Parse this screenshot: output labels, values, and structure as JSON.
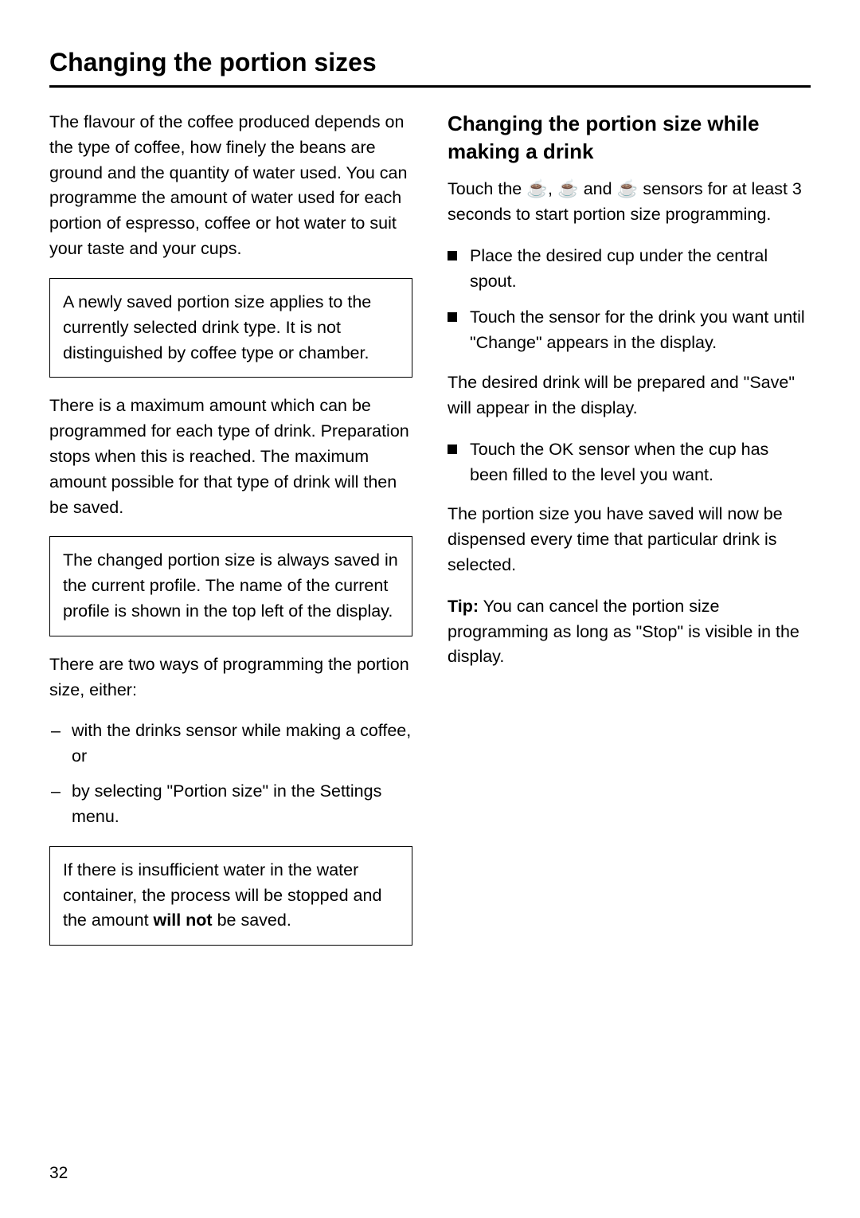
{
  "page": {
    "title": "Changing the portion sizes",
    "number": "32"
  },
  "left": {
    "para1": "The flavour of the coffee produced depends on the type of coffee, how finely the beans are ground and the quantity of water used. You can programme the amount of water used for each portion of espresso, coffee or hot water to suit your taste and your cups.",
    "note1": "A newly saved portion size applies to the currently selected drink type.  It is not distinguished by coffee type or chamber.",
    "para2": "There is a maximum amount which can be programmed for each type of drink. Preparation stops when this is reached. The maximum amount possible for that type of drink will then be saved.",
    "note2": "The changed portion size is always saved in the current profile. The name of the current profile is shown in the top left of the display.",
    "para3": "There are two ways of programming the portion size, either:",
    "list1": {
      "item1": "with the drinks sensor while making a coffee, or",
      "item2": "by selecting \"Portion size\" in the Settings menu."
    },
    "note3_pre": "If there is insufficient water in the water container, the process will be stopped and the amount ",
    "note3_bold": "will not",
    "note3_post": " be saved."
  },
  "right": {
    "heading": "Changing the portion size while making a drink",
    "para_sensors_pre": "Touch the ",
    "icon1": "☕",
    "sep1": ", ",
    "icon2": "☕",
    "sep2": " and ",
    "icon3": "☕",
    "para_sensors_post": " sensors for at least 3 seconds to start portion size programming.",
    "list1": {
      "item1": "Place the desired cup under the central spout.",
      "item2": "Touch the sensor for the drink you want until \"Change\" appears in the display."
    },
    "para2": "The desired drink will be prepared and \"Save\" will appear in the display.",
    "list2": {
      "item1": "Touch the OK sensor when the cup has been filled to the level you want."
    },
    "para3": "The portion size you have saved will now be dispensed every time that particular drink is selected.",
    "tip_label": "Tip:",
    "tip_text": " You can cancel the portion size programming as long as \"Stop\" is visible in the display."
  }
}
